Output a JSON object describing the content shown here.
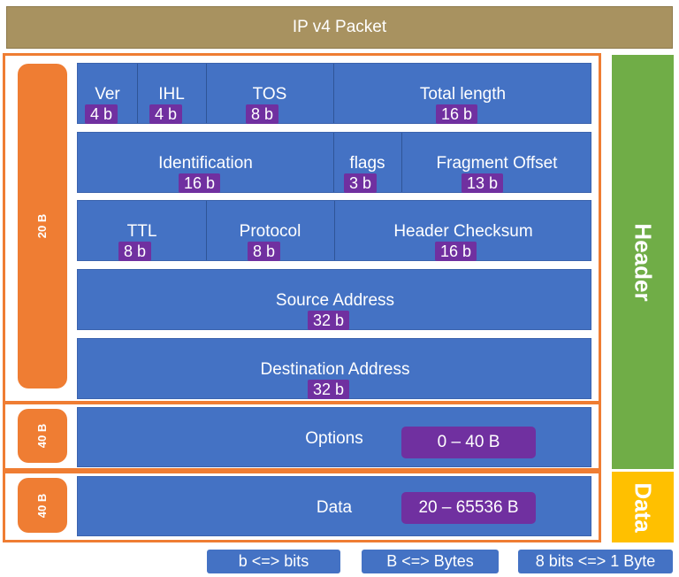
{
  "title": "IP v4 Packet",
  "side_labels": {
    "header_bytes": "20 B",
    "options_bytes": "40 B",
    "data_bytes": "40 B"
  },
  "rows": [
    [
      {
        "label": "Ver",
        "size": "4 b"
      },
      {
        "label": "IHL",
        "size": "4 b"
      },
      {
        "label": "TOS",
        "size": "8 b"
      },
      {
        "label": "Total length",
        "size": "16 b"
      }
    ],
    [
      {
        "label": "Identification",
        "size": "16 b"
      },
      {
        "label": "flags",
        "size": "3 b"
      },
      {
        "label": "Fragment Offset",
        "size": "13 b"
      }
    ],
    [
      {
        "label": "TTL",
        "size": "8 b"
      },
      {
        "label": "Protocol",
        "size": "8 b"
      },
      {
        "label": "Header Checksum",
        "size": "16 b"
      }
    ],
    [
      {
        "label": "Source Address",
        "size": "32 b"
      }
    ],
    [
      {
        "label": "Destination Address",
        "size": "32 b"
      }
    ]
  ],
  "options": {
    "label": "Options",
    "range": "0 – 40 B"
  },
  "data": {
    "label": "Data",
    "range": "20 – 65536 B"
  },
  "right_labels": {
    "header": "Header",
    "data": "Data"
  },
  "legend": [
    "b <=> bits",
    "B <=> Bytes",
    "8 bits <=> 1 Byte"
  ],
  "colors": {
    "title": "#a89260",
    "frame": "#ef7d33",
    "cell": "#4472c4",
    "size_badge": "#7030a0",
    "header_bar": "#70ad47",
    "data_bar": "#ffc000"
  }
}
